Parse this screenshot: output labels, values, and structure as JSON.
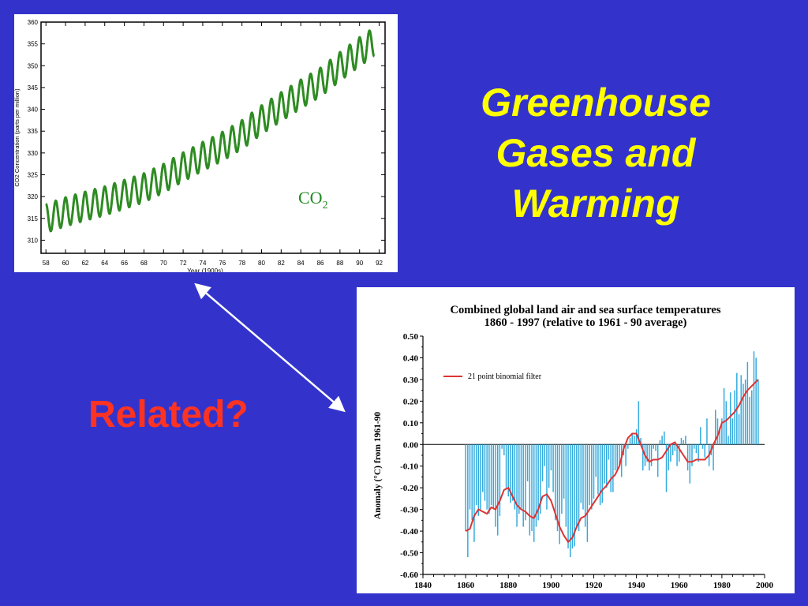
{
  "slide": {
    "title_lines": [
      "Greenhouse",
      "Gases and",
      "Warming"
    ],
    "question": "Related?"
  },
  "colors": {
    "background": "#3333cc",
    "title": "#ffff00",
    "question": "#ff3322",
    "co2_line": "#2e8b22",
    "co2_label": "#228b22",
    "temp_bars": "#33aadd",
    "temp_filter": "#dd3333",
    "arrow": "#ffffff"
  },
  "chart_data": [
    {
      "type": "line",
      "label_main": "CO",
      "label_sub": "2",
      "ylabel": "CO2 Concentration (parts per million)",
      "xlabel": "Year (1900s)",
      "xlim": [
        57.5,
        92.6
      ],
      "ylim": [
        307,
        360
      ],
      "xticks": [
        "58",
        "60",
        "62",
        "64",
        "66",
        "68",
        "70",
        "72",
        "74",
        "76",
        "78",
        "80",
        "82",
        "84",
        "86",
        "88",
        "90",
        "92"
      ],
      "yticks": [
        "310",
        "315",
        "320",
        "325",
        "330",
        "335",
        "340",
        "345",
        "350",
        "355",
        "360"
      ],
      "trend": {
        "x": [
          58,
          60,
          62,
          64,
          66,
          68,
          70,
          72,
          74,
          76,
          78,
          80,
          82,
          84,
          86,
          88,
          90,
          91.5
        ],
        "y": [
          315,
          316.5,
          317.8,
          319,
          320.5,
          322,
          324.2,
          326.8,
          329.2,
          331.5,
          334.2,
          337.6,
          340.6,
          343.5,
          346.2,
          349.8,
          353.2,
          355.5
        ]
      },
      "seasonal_amplitude": 3.3
    },
    {
      "type": "bar",
      "title_line1": "Combined global land air and sea surface temperatures",
      "title_line2": "1860 - 1997 (relative to 1961 - 90 average)",
      "ylabel": "Anomaly (°C) from 1961-90",
      "legend": "21 point binomial filter",
      "xlim": [
        1840,
        2000
      ],
      "ylim": [
        -0.6,
        0.5
      ],
      "xticks": [
        "1840",
        "1860",
        "1880",
        "1900",
        "1920",
        "1940",
        "1960",
        "1980",
        "2000"
      ],
      "yticks": [
        "0.50",
        "0.40",
        "0.30",
        "0.20",
        "0.10",
        "0.00",
        "-0.10",
        "-0.20",
        "-0.30",
        "-0.40",
        "-0.50",
        "-0.60"
      ],
      "years_start": 1860,
      "anomalies": [
        -0.4,
        -0.52,
        -0.3,
        -0.35,
        -0.45,
        -0.28,
        -0.33,
        -0.3,
        -0.22,
        -0.26,
        -0.3,
        -0.32,
        -0.28,
        -0.3,
        -0.38,
        -0.42,
        -0.33,
        -0.02,
        -0.05,
        -0.2,
        -0.24,
        -0.27,
        -0.26,
        -0.3,
        -0.38,
        -0.32,
        -0.3,
        -0.38,
        -0.35,
        -0.17,
        -0.42,
        -0.4,
        -0.45,
        -0.38,
        -0.35,
        -0.32,
        -0.17,
        -0.1,
        -0.3,
        -0.2,
        -0.12,
        -0.22,
        -0.35,
        -0.4,
        -0.46,
        -0.32,
        -0.25,
        -0.38,
        -0.48,
        -0.52,
        -0.48,
        -0.47,
        -0.38,
        -0.4,
        -0.27,
        -0.3,
        -0.38,
        -0.45,
        -0.28,
        -0.3,
        -0.25,
        -0.15,
        -0.23,
        -0.28,
        -0.27,
        -0.18,
        -0.2,
        -0.07,
        -0.22,
        -0.22,
        -0.12,
        -0.12,
        -0.1,
        -0.15,
        -0.05,
        -0.1,
        -0.02,
        0.03,
        0.05,
        0.04,
        0.07,
        0.2,
        0.03,
        -0.12,
        -0.1,
        -0.08,
        -0.12,
        -0.1,
        -0.02,
        -0.03,
        -0.15,
        0.02,
        0.04,
        0.06,
        -0.22,
        -0.12,
        -0.08,
        -0.05,
        -0.03,
        -0.1,
        -0.08,
        0.03,
        0.02,
        0.04,
        -0.12,
        -0.18,
        -0.1,
        -0.02,
        -0.04,
        -0.08,
        0.08,
        -0.02,
        -0.06,
        0.12,
        -0.1,
        -0.05,
        -0.12,
        0.16,
        0.12,
        0.08,
        0.12,
        0.26,
        0.2,
        0.04,
        0.24,
        0.12,
        0.25,
        0.33,
        0.14,
        0.32,
        0.28,
        0.3,
        0.38,
        0.22,
        0.25,
        0.43,
        0.4,
        0.3
      ],
      "filter_years": [
        1860,
        1862,
        1864,
        1866,
        1868,
        1870,
        1872,
        1874,
        1876,
        1878,
        1880,
        1882,
        1884,
        1886,
        1888,
        1890,
        1892,
        1894,
        1896,
        1898,
        1900,
        1902,
        1904,
        1906,
        1908,
        1910,
        1912,
        1914,
        1916,
        1918,
        1920,
        1922,
        1924,
        1926,
        1928,
        1930,
        1932,
        1934,
        1936,
        1938,
        1940,
        1942,
        1944,
        1946,
        1948,
        1950,
        1952,
        1954,
        1956,
        1958,
        1960,
        1962,
        1964,
        1966,
        1968,
        1970,
        1972,
        1974,
        1976,
        1978,
        1980,
        1982,
        1984,
        1986,
        1988,
        1990,
        1992,
        1994,
        1996,
        1997
      ],
      "filter_values": [
        -0.4,
        -0.39,
        -0.33,
        -0.3,
        -0.31,
        -0.32,
        -0.29,
        -0.3,
        -0.26,
        -0.21,
        -0.2,
        -0.24,
        -0.28,
        -0.3,
        -0.31,
        -0.33,
        -0.34,
        -0.3,
        -0.24,
        -0.23,
        -0.26,
        -0.32,
        -0.38,
        -0.42,
        -0.45,
        -0.43,
        -0.38,
        -0.34,
        -0.33,
        -0.3,
        -0.27,
        -0.24,
        -0.21,
        -0.19,
        -0.16,
        -0.14,
        -0.1,
        -0.02,
        0.03,
        0.05,
        0.05,
        0.0,
        -0.05,
        -0.08,
        -0.07,
        -0.07,
        -0.06,
        -0.03,
        0.0,
        0.01,
        -0.02,
        -0.05,
        -0.08,
        -0.08,
        -0.07,
        -0.07,
        -0.07,
        -0.05,
        0.0,
        0.04,
        0.1,
        0.11,
        0.13,
        0.15,
        0.18,
        0.22,
        0.25,
        0.27,
        0.29,
        0.3
      ]
    }
  ]
}
